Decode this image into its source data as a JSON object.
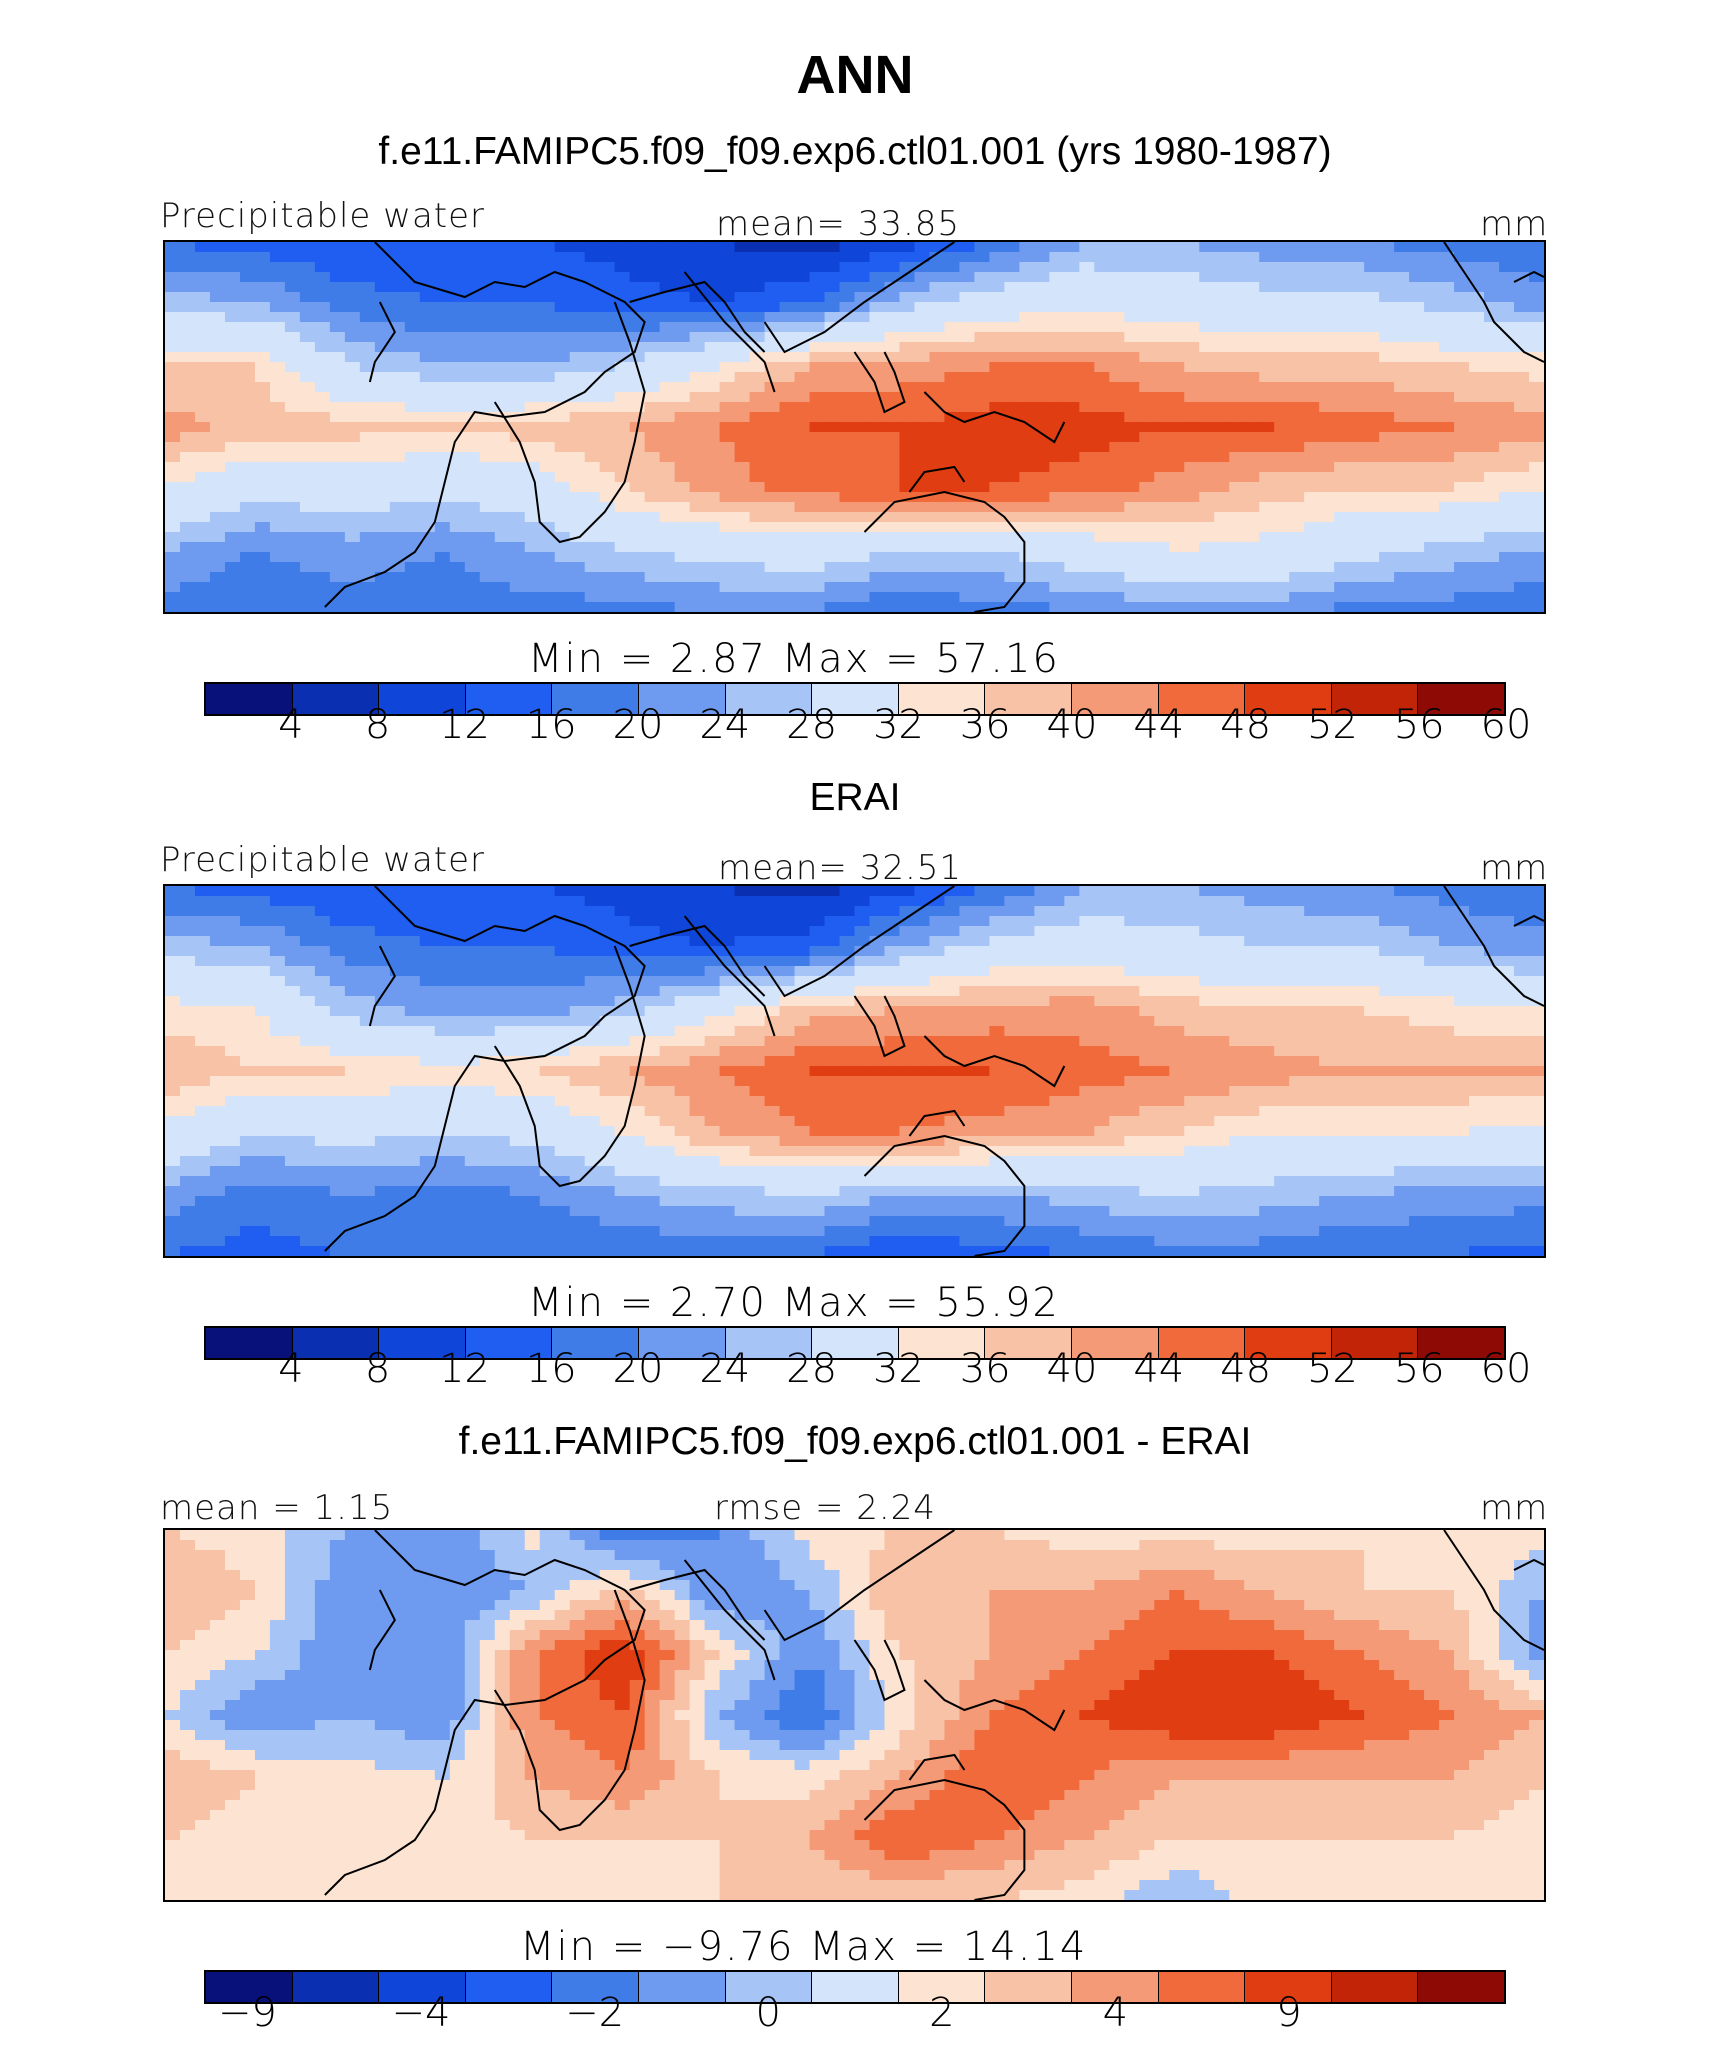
{
  "title": "ANN",
  "panels": [
    {
      "subtitle": "f.e11.FAMIPC5.f09_f09.exp6.ctl01.001 (yrs 1980-1987)",
      "left_label": "Precipitable water",
      "center_label": "mean=   33.85",
      "right_label": "mm",
      "minmax": "Min  =     2.87  Max  =    57.16",
      "colorbar_ticks": [
        "4",
        "8",
        "12",
        "16",
        "20",
        "24",
        "28",
        "32",
        "36",
        "40",
        "44",
        "48",
        "52",
        "56",
        "60"
      ]
    },
    {
      "subtitle": "ERAI",
      "left_label": "Precipitable water",
      "center_label": "mean=   32.51",
      "right_label": "mm",
      "minmax": "Min  =     2.70  Max  =    55.92",
      "colorbar_ticks": [
        "4",
        "8",
        "12",
        "16",
        "20",
        "24",
        "28",
        "32",
        "36",
        "40",
        "44",
        "48",
        "52",
        "56",
        "60"
      ]
    },
    {
      "subtitle": "f.e11.FAMIPC5.f09_f09.exp6.ctl01.001 - ERAI",
      "left_label": "mean =    1.15",
      "center_label": "rmse =    2.24",
      "right_label": "mm",
      "minmax": "Min  =   −9.76  Max  =    14.14",
      "colorbar_ticks": [
        "−9",
        "−4",
        "−2",
        "0",
        "2",
        "4",
        "9"
      ]
    }
  ],
  "colors": {
    "colorbar": [
      "#08107a",
      "#0a2fb0",
      "#0f45d8",
      "#1f5ef0",
      "#3f7ce8",
      "#6e9bef",
      "#a6c4f5",
      "#d4e4fa",
      "#fde4d2",
      "#f8c2a6",
      "#f59a76",
      "#f06a3c",
      "#e03d12",
      "#c22408",
      "#8e0b05"
    ]
  },
  "chart_data": [
    {
      "type": "heatmap",
      "title": "Precipitable water",
      "units": "mm",
      "mean": 33.85,
      "min": 2.87,
      "max": 57.16,
      "levels": [
        4,
        8,
        12,
        16,
        20,
        24,
        28,
        32,
        36,
        40,
        44,
        48,
        52,
        56,
        60
      ],
      "field": [
        [
          16,
          14,
          12,
          12,
          12,
          10,
          8,
          6,
          10,
          16,
          24,
          24,
          22,
          20,
          18,
          16
        ],
        [
          26,
          24,
          18,
          16,
          16,
          14,
          12,
          16,
          26,
          32,
          34,
          32,
          30,
          30,
          26,
          22
        ],
        [
          40,
          40,
          28,
          24,
          24,
          28,
          36,
          44,
          46,
          48,
          48,
          44,
          42,
          42,
          40,
          38
        ],
        [
          46,
          42,
          42,
          40,
          42,
          44,
          48,
          52,
          52,
          54,
          54,
          52,
          52,
          50,
          48,
          46
        ],
        [
          36,
          30,
          32,
          30,
          32,
          40,
          46,
          50,
          52,
          52,
          50,
          46,
          42,
          40,
          40,
          36
        ],
        [
          24,
          20,
          22,
          20,
          24,
          28,
          30,
          32,
          28,
          28,
          32,
          36,
          34,
          30,
          26,
          24
        ],
        [
          18,
          16,
          18,
          18,
          18,
          18,
          20,
          20,
          16,
          18,
          20,
          22,
          22,
          18,
          18,
          16
        ]
      ]
    },
    {
      "type": "heatmap",
      "title": "Precipitable water",
      "units": "mm",
      "mean": 32.51,
      "min": 2.7,
      "max": 55.92,
      "levels": [
        4,
        8,
        12,
        16,
        20,
        24,
        28,
        32,
        36,
        40,
        44,
        48,
        52,
        56,
        60
      ],
      "field": [
        [
          16,
          14,
          12,
          12,
          12,
          10,
          8,
          6,
          10,
          16,
          24,
          24,
          22,
          20,
          18,
          16
        ],
        [
          26,
          24,
          18,
          16,
          16,
          14,
          12,
          14,
          24,
          30,
          32,
          30,
          28,
          28,
          24,
          22
        ],
        [
          38,
          36,
          26,
          22,
          22,
          26,
          34,
          42,
          44,
          46,
          46,
          42,
          40,
          40,
          38,
          36
        ],
        [
          44,
          40,
          40,
          38,
          40,
          44,
          48,
          52,
          52,
          52,
          50,
          48,
          46,
          44,
          44,
          44
        ],
        [
          34,
          28,
          30,
          28,
          30,
          36,
          44,
          48,
          48,
          46,
          44,
          40,
          36,
          36,
          36,
          34
        ],
        [
          22,
          18,
          20,
          18,
          20,
          24,
          26,
          28,
          24,
          24,
          26,
          28,
          26,
          24,
          22,
          22
        ],
        [
          16,
          14,
          16,
          16,
          16,
          16,
          18,
          16,
          12,
          14,
          16,
          18,
          18,
          16,
          16,
          14
        ]
      ]
    },
    {
      "type": "heatmap",
      "title": "",
      "units": "mm",
      "mean": 1.15,
      "rmse": 2.24,
      "min": -9.76,
      "max": 14.14,
      "levels": [
        -9,
        -6,
        -4,
        -3,
        -2,
        -1,
        0,
        1,
        2,
        3,
        4,
        6,
        9
      ],
      "field": [
        [
          1,
          0.5,
          -1,
          -2,
          0.5,
          -3,
          -2,
          0.5,
          1,
          1,
          0.5,
          0.5,
          0.5,
          1,
          0.5,
          0.5
        ],
        [
          2,
          1,
          -2,
          -2,
          -1,
          1.5,
          -2,
          -1,
          2,
          2,
          2,
          3,
          2,
          1,
          1,
          -1
        ],
        [
          1,
          0,
          -2,
          -2,
          3,
          5,
          1,
          -2,
          1,
          2,
          3,
          4,
          4,
          3,
          2,
          -2
        ],
        [
          0,
          -2,
          -1,
          -2,
          3,
          4,
          -1,
          -3,
          0.5,
          3,
          4,
          5,
          5,
          4,
          3,
          2
        ],
        [
          2,
          1,
          0.5,
          0,
          2,
          3,
          1,
          0.5,
          2,
          4,
          3,
          2,
          2,
          2,
          2,
          1
        ],
        [
          1,
          0.5,
          1,
          0.5,
          1,
          1,
          1,
          2,
          4,
          3,
          2,
          1,
          1,
          1,
          1,
          0.5
        ],
        [
          1,
          0.5,
          1,
          1,
          0.5,
          0.5,
          1,
          1,
          1,
          1,
          0.5,
          -1,
          0.5,
          1,
          0.5,
          0.5
        ]
      ]
    }
  ]
}
